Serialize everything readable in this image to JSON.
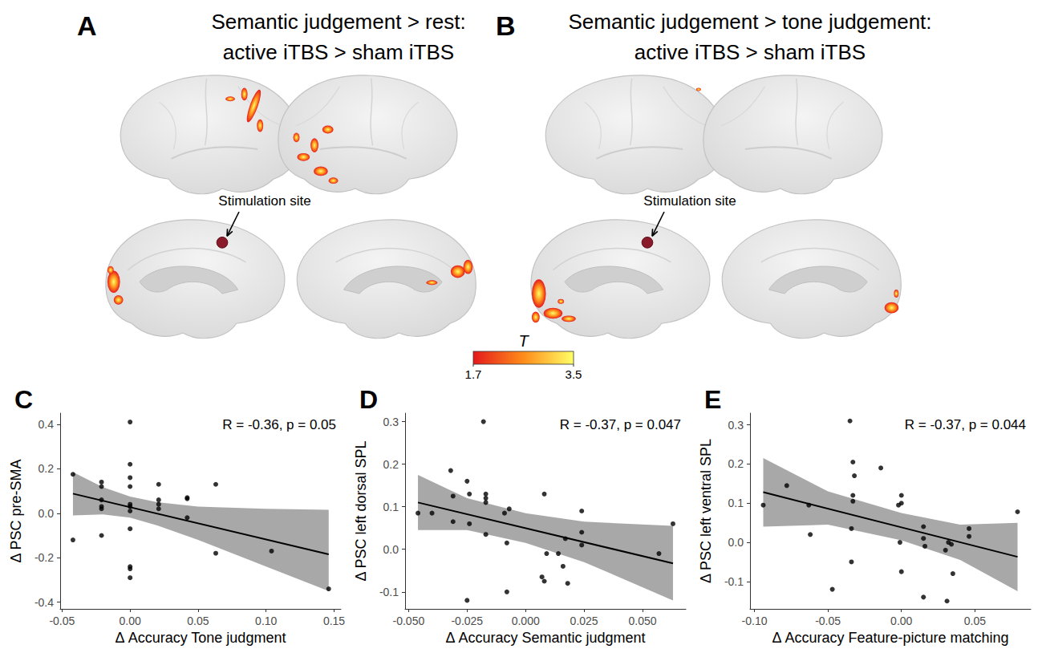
{
  "brain_panels": [
    {
      "letter": "A",
      "title_lines": [
        "Semantic judgement > rest:",
        "active iTBS > sham iTBS"
      ],
      "annotation": "Stimulation site"
    },
    {
      "letter": "B",
      "title_lines": [
        "Semantic judgement > tone judgement:",
        "active iTBS > sham iTBS"
      ],
      "annotation": "Stimulation site"
    }
  ],
  "colorbar": {
    "title": "T",
    "range": [
      1.7,
      3.5
    ],
    "ticks": [
      1.7,
      3.5
    ],
    "colors": [
      "#e41a1c",
      "#ff8c1a",
      "#ffff66"
    ]
  },
  "chart_data": [
    {
      "letter": "C",
      "type": "scatter",
      "x_label": "Δ Accuracy Tone judgment",
      "y_label": "Δ PSC pre-SMA",
      "annotation": "R = -0.36, p = 0.05",
      "grid": false,
      "color": "#000000",
      "xlim": [
        -0.0514,
        0.155
      ],
      "xticks": [
        -0.05,
        {
          "value": 0,
          "label": "0.00"
        },
        0.05,
        {
          "value": 0.1,
          "label": "0.10"
        },
        0.15
      ],
      "ylim": [
        -0.43,
        0.45
      ],
      "yticks": [
        -0.4,
        -0.2,
        {
          "value": 0,
          "label": "0.0"
        },
        0.2,
        0.4
      ],
      "x": [
        -0.042,
        -0.042,
        -0.021,
        -0.021,
        -0.021,
        -0.021,
        -0.021,
        -0.021,
        0,
        0,
        0,
        0,
        0,
        0,
        0,
        0,
        0,
        0,
        0,
        0.021,
        0.021,
        0.021,
        0.021,
        0.042,
        0.042,
        0.042,
        0.063,
        0.063,
        0.104,
        0.146
      ],
      "y": [
        0.175,
        -0.12,
        0.14,
        0.12,
        0.06,
        0.03,
        0.02,
        -0.1,
        0.41,
        0.22,
        0.16,
        0.12,
        0.04,
        0.03,
        0.01,
        -0.07,
        -0.24,
        -0.25,
        -0.29,
        0.13,
        0.06,
        0.04,
        0.02,
        0.07,
        0.065,
        -0.02,
        0.13,
        -0.18,
        -0.17,
        -0.34
      ],
      "fit": {
        "x": [
          -0.042,
          0.146
        ],
        "y": [
          0.088,
          -0.185
        ],
        "color": "#000000"
      },
      "band": {
        "x": [
          -0.042,
          -0.02,
          0,
          0.02,
          0.05,
          0.1,
          0.146
        ],
        "lower": [
          -0.01,
          -0.005,
          -0.02,
          -0.055,
          -0.12,
          -0.24,
          -0.35
        ],
        "upper": [
          0.185,
          0.117,
          0.075,
          0.05,
          0.03,
          0.02,
          0.015
        ],
        "color": "#999999"
      }
    },
    {
      "letter": "D",
      "type": "scatter",
      "x_label": "Δ Accuracy Semantic judgment",
      "y_label": "Δ PSC left dorsal SPL",
      "annotation": "R = -0.37, p = 0.047",
      "grid": false,
      "color": "#000000",
      "xlim": [
        -0.0515,
        0.0685
      ],
      "xticks": [
        {
          "value": -0.05,
          "label": "-0.050"
        },
        -0.025,
        {
          "value": 0,
          "label": "0.000"
        },
        0.025,
        {
          "value": 0.05,
          "label": "0.050"
        }
      ],
      "ylim": [
        -0.14,
        0.32
      ],
      "yticks": [
        -0.1,
        {
          "value": 0,
          "label": "0.0"
        },
        0.1,
        0.2,
        0.3
      ],
      "x": [
        -0.046,
        -0.04,
        -0.032,
        -0.031,
        -0.031,
        -0.025,
        -0.025,
        -0.024,
        -0.024,
        -0.018,
        -0.017,
        -0.017,
        -0.017,
        -0.017,
        -0.009,
        -0.008,
        -0.008,
        -0.007,
        0.007,
        0.008,
        0.008,
        0.009,
        0.014,
        0.016,
        0.017,
        0.018,
        0.024,
        0.024,
        0.024,
        0.057,
        0.063
      ],
      "y": [
        0.085,
        0.085,
        0.185,
        0.125,
        0.065,
        -0.12,
        0.16,
        0.13,
        0.06,
        0.3,
        0.13,
        0.12,
        0.11,
        0.035,
        0.085,
        0.015,
        -0.1,
        0.095,
        -0.065,
        -0.075,
        0.13,
        -0.01,
        -0.01,
        -0.04,
        0.025,
        -0.08,
        0.09,
        0.04,
        0.01,
        -0.01,
        0.06
      ],
      "fit": {
        "x": [
          -0.046,
          0.063
        ],
        "y": [
          0.11,
          -0.033
        ],
        "color": "#000000"
      },
      "band": {
        "x": [
          -0.046,
          -0.025,
          0,
          0.025,
          0.063
        ],
        "lower": [
          0.045,
          0.045,
          0.015,
          -0.03,
          -0.12
        ],
        "upper": [
          0.175,
          0.12,
          0.085,
          0.065,
          0.055
        ],
        "color": "#999999"
      }
    },
    {
      "letter": "E",
      "type": "scatter",
      "x_label": "Δ Accuracy Feature-picture matching",
      "y_label": "Δ PSC left ventral SPL",
      "annotation": "R = -0.37, p = 0.044",
      "grid": false,
      "color": "#000000",
      "xlim": [
        -0.103,
        0.088
      ],
      "xticks": [
        {
          "value": -0.1,
          "label": "-0.10"
        },
        -0.05,
        {
          "value": 0,
          "label": "0.00"
        },
        0.05
      ],
      "ylim": [
        -0.17,
        0.33
      ],
      "yticks": [
        -0.1,
        {
          "value": 0,
          "label": "0.0"
        },
        0.1,
        0.2,
        0.3
      ],
      "x": [
        -0.094,
        -0.078,
        -0.063,
        -0.062,
        -0.047,
        -0.035,
        -0.033,
        -0.032,
        -0.033,
        -0.033,
        -0.034,
        -0.034,
        -0.014,
        -0.002,
        0,
        0,
        -0.001,
        0,
        0.015,
        0.015,
        0.016,
        0.015,
        0.03,
        0.031,
        0.032,
        0.034,
        0.035,
        0.046,
        0.046,
        0.079
      ],
      "y": [
        0.095,
        0.145,
        0.095,
        0.02,
        -0.12,
        0.31,
        0.205,
        0.17,
        0.12,
        0.105,
        0.035,
        -0.05,
        0.19,
        0.095,
        0.12,
        0.1,
        0,
        -0.075,
        0.04,
        0.01,
        -0.01,
        -0.14,
        -0.02,
        -0.15,
        0,
        -0.005,
        -0.08,
        0.035,
        0.015,
        0.078
      ],
      "fit": {
        "x": [
          -0.094,
          0.079
        ],
        "y": [
          0.128,
          -0.037
        ],
        "color": "#000000"
      },
      "band": {
        "x": [
          -0.094,
          -0.05,
          0,
          0.04,
          0.079
        ],
        "lower": [
          0.04,
          0.045,
          0.005,
          -0.045,
          -0.125
        ],
        "upper": [
          0.215,
          0.13,
          0.075,
          0.045,
          0.05
        ],
        "color": "#999999"
      }
    }
  ]
}
